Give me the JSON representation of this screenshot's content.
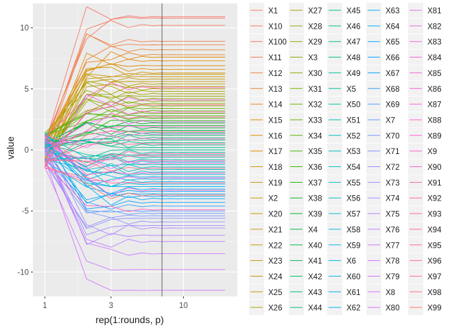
{
  "chart_data": {
    "type": "line",
    "xlabel": "rep(1:rounds, p)",
    "ylabel": "value",
    "x_scale": "log",
    "x_ticks": [
      "1",
      "3",
      "10"
    ],
    "y_ticks": [
      "-10",
      "-5",
      "0",
      "5",
      "10"
    ],
    "ylim": [
      -12.0,
      12.0
    ],
    "grid": true,
    "legend_position": "right",
    "reference_line_x": 7,
    "rounds": [
      1,
      2,
      3,
      4,
      5,
      6,
      7,
      8,
      9,
      10,
      11,
      12,
      13,
      14,
      15,
      16,
      17,
      18,
      19,
      20
    ],
    "final_values": [
      10.9,
      10.8,
      10.2,
      8.9,
      8.6,
      8.2,
      7.8,
      7.6,
      7.3,
      6.9,
      6.6,
      6.3,
      6.2,
      6.0,
      5.8,
      5.6,
      5.4,
      5.2,
      5.0,
      4.8,
      4.6,
      4.4,
      4.2,
      4.0,
      3.8,
      3.6,
      3.4,
      3.2,
      3.0,
      2.8,
      2.6,
      2.4,
      2.2,
      2.0,
      1.8,
      1.6,
      1.4,
      1.2,
      1.0,
      0.8,
      0.6,
      0.4,
      0.2,
      0.0,
      -0.2,
      -0.4,
      -0.6,
      -0.8,
      -1.0,
      -1.2,
      -1.4,
      -1.6,
      -1.8,
      -2.0,
      -2.2,
      -2.4,
      -2.6,
      -2.8,
      -3.0,
      -3.2,
      -3.4,
      -3.6,
      -3.8,
      -4.0,
      -4.3,
      -4.6,
      -5.0,
      -5.2,
      -5.4,
      -5.6,
      -5.9,
      -6.2,
      -6.4,
      -7.0,
      -7.5,
      -8.5,
      -9.8,
      -11.5,
      1.3,
      -1.1,
      2.3,
      -2.3,
      4.1,
      -3.3,
      0.9,
      -0.9,
      1.9,
      -1.9,
      3.1,
      -4.9,
      5.1,
      -0.3,
      0.5,
      -0.5,
      2.7,
      -2.7,
      1.5,
      -1.5,
      3.7,
      -3.7
    ],
    "legend_title": "",
    "series_names": [
      "X1",
      "X10",
      "X100",
      "X11",
      "X12",
      "X13",
      "X14",
      "X15",
      "X16",
      "X17",
      "X18",
      "X19",
      "X2",
      "X20",
      "X21",
      "X22",
      "X23",
      "X24",
      "X25",
      "X26",
      "X27",
      "X28",
      "X29",
      "X3",
      "X30",
      "X31",
      "X32",
      "X33",
      "X34",
      "X35",
      "X36",
      "X37",
      "X38",
      "X39",
      "X4",
      "X40",
      "X41",
      "X42",
      "X43",
      "X44",
      "X45",
      "X46",
      "X47",
      "X48",
      "X49",
      "X5",
      "X50",
      "X51",
      "X52",
      "X53",
      "X54",
      "X55",
      "X56",
      "X57",
      "X58",
      "X59",
      "X6",
      "X60",
      "X61",
      "X62",
      "X63",
      "X64",
      "X65",
      "X66",
      "X67",
      "X68",
      "X69",
      "X7",
      "X70",
      "X71",
      "X72",
      "X73",
      "X74",
      "X75",
      "X76",
      "X77",
      "X78",
      "X79",
      "X8",
      "X80",
      "X81",
      "X82",
      "X83",
      "X84",
      "X85",
      "X86",
      "X87",
      "X88",
      "X89",
      "X9",
      "X90",
      "X91",
      "X92",
      "X93",
      "X94",
      "X95",
      "X96",
      "X97",
      "X98",
      "X99"
    ]
  }
}
